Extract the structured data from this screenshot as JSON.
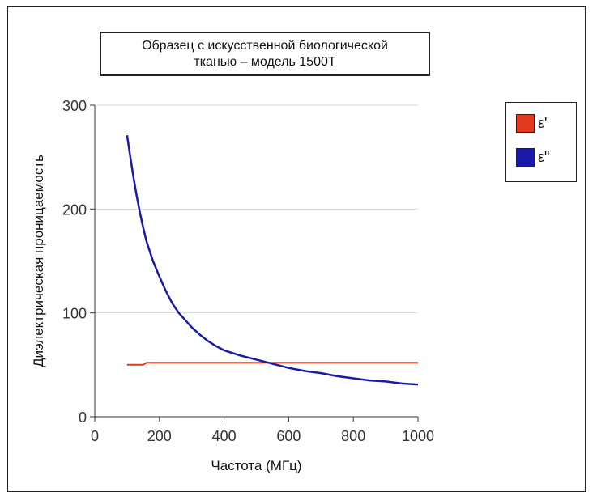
{
  "title": {
    "line1": "Образец с искусственной биологической",
    "line2": "тканью – модель 1500Т"
  },
  "legend": [
    {
      "label": "ε'",
      "color": "#e23a1e"
    },
    {
      "label": "ε\"",
      "color": "#1a1aa8"
    }
  ],
  "chart_data": {
    "type": "line",
    "title": "Образец с искусственной биологической тканью – модель 1500Т",
    "xlabel": "Частота (МГц)",
    "ylabel": "Диэлектрическая проницаемость",
    "xlim": [
      0,
      1000
    ],
    "ylim": [
      0,
      300
    ],
    "x_ticks": [
      0,
      200,
      400,
      600,
      800,
      1000
    ],
    "y_ticks": [
      0,
      100,
      200,
      300
    ],
    "grid": true,
    "legend_position": "top-right",
    "series": [
      {
        "name": "ε'",
        "color": "#e23a1e",
        "x": [
          100,
          150,
          160,
          200,
          300,
          400,
          500,
          600,
          700,
          800,
          900,
          1000
        ],
        "y": [
          50,
          50,
          52,
          52,
          52,
          52,
          52,
          52,
          52,
          52,
          52,
          52
        ]
      },
      {
        "name": "ε\"",
        "color": "#1a1aa8",
        "x": [
          100,
          110,
          120,
          130,
          140,
          150,
          160,
          180,
          200,
          220,
          240,
          260,
          280,
          300,
          325,
          350,
          375,
          400,
          450,
          500,
          550,
          600,
          650,
          700,
          750,
          800,
          850,
          900,
          950,
          1000
        ],
        "y": [
          271,
          250,
          230,
          212,
          196,
          182,
          169,
          150,
          135,
          121,
          109,
          100,
          93,
          86,
          79,
          73,
          68,
          64,
          59,
          55,
          51,
          47,
          44,
          42,
          39,
          37,
          35,
          34,
          32,
          31
        ]
      }
    ]
  }
}
